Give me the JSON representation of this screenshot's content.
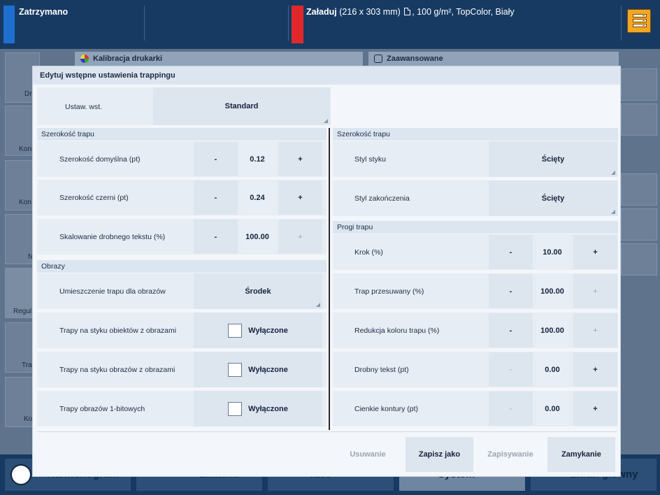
{
  "topbar": {
    "status": "Zatrzymano",
    "load_label": "Załaduj",
    "load_size": "(216 x 303 mm)",
    "load_details": ", 100 g/m², TopColor, Biały",
    "colors": {
      "bar": "#173a63",
      "status_accent": "#1f6fd1",
      "load_accent": "#e0282c",
      "queue": "#f5a623"
    }
  },
  "background": {
    "header_left": "Kalibracja drukarki",
    "header_right": "Zaawansowane",
    "side_labels": [
      "Dr",
      "Kons",
      "Kon",
      "N",
      "Regul",
      "Tra",
      "Ko"
    ]
  },
  "bottom_nav": [
    "Harmonogram",
    "Zadania",
    "Tace",
    "System",
    "Ekran główny"
  ],
  "dialog": {
    "title": "Edytuj wstępne ustawienia trappingu",
    "preset_label": "Ustaw. wst.",
    "preset_value": "Standard",
    "left": {
      "section1": "Szerokość trapu",
      "rows": [
        {
          "label": "Szerokość domyślna (pt)",
          "minus": "-",
          "value": "0.12",
          "plus": "+"
        },
        {
          "label": "Szerokość czerni (pt)",
          "minus": "-",
          "value": "0.24",
          "plus": "+"
        },
        {
          "label": "Skalowanie drobnego tekstu (%)",
          "minus": "-",
          "value": "100.00",
          "plus": "+"
        }
      ],
      "section2": "Obrazy",
      "placement_label": "Umieszczenie trapu dla obrazów",
      "placement_value": "Środek",
      "checks": [
        {
          "label": "Trapy na styku obiektów z obrazami",
          "value": "Wyłączone"
        },
        {
          "label": "Trapy na styku obrazów z obrazami",
          "value": "Wyłączone"
        },
        {
          "label": "Trapy obrazów 1-bitowych",
          "value": "Wyłączone"
        }
      ]
    },
    "right": {
      "section1": "Szerokość trapu",
      "join_label": "Styl styku",
      "join_value": "Ścięty",
      "end_label": "Styl zakończenia",
      "end_value": "Ścięty",
      "section2": "Progi trapu",
      "rows": [
        {
          "label": "Krok (%)",
          "minus": "-",
          "value": "10.00",
          "plus": "+"
        },
        {
          "label": "Trap przesuwany (%)",
          "minus": "-",
          "value": "100.00",
          "plus": "+"
        },
        {
          "label": "Redukcja koloru trapu (%)",
          "minus": "-",
          "value": "100.00",
          "plus": "+"
        },
        {
          "label": "Drobny tekst (pt)",
          "minus": "-",
          "value": "0.00",
          "plus": "+"
        },
        {
          "label": "Cienkie kontury (pt)",
          "minus": "-",
          "value": "0.00",
          "plus": "+"
        }
      ]
    },
    "footer": {
      "delete": "Usuwanie",
      "save_as": "Zapisz jako",
      "save": "Zapisywanie",
      "close": "Zamykanie"
    }
  }
}
